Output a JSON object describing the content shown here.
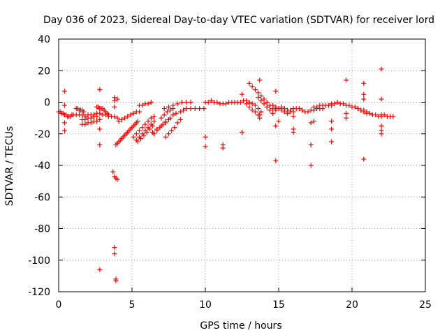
{
  "chart_data": {
    "type": "scatter",
    "title": "Day 036 of 2023, Sidereal Day-to-day VTEC variation (SDTVAR) for receiver lord",
    "xlabel": "GPS time / hours",
    "ylabel": "SDTVAR / TECUs",
    "xlim": [
      0,
      25
    ],
    "ylim": [
      -120,
      40
    ],
    "xticks": [
      0,
      5,
      10,
      15,
      20,
      25
    ],
    "yticks": [
      -120,
      -100,
      -80,
      -60,
      -40,
      -20,
      0,
      20,
      40
    ],
    "marker": "+",
    "color": "#ff0000",
    "grid": true,
    "series": [
      {
        "name": "SDTVAR",
        "points": [
          [
            0.0,
            -6
          ],
          [
            0.1,
            -6
          ],
          [
            0.2,
            -7
          ],
          [
            0.3,
            -7
          ],
          [
            0.4,
            -8
          ],
          [
            0.5,
            -8
          ],
          [
            0.6,
            -9
          ],
          [
            0.7,
            -9
          ],
          [
            0.8,
            -9
          ],
          [
            0.9,
            -8
          ],
          [
            1.0,
            -8
          ],
          [
            1.2,
            -8
          ],
          [
            1.4,
            -8
          ],
          [
            1.6,
            -8
          ],
          [
            1.8,
            -9
          ],
          [
            2.0,
            -8
          ],
          [
            2.2,
            -8
          ],
          [
            2.4,
            -8
          ],
          [
            2.6,
            -7
          ],
          [
            2.8,
            -7
          ],
          [
            1.2,
            -4
          ],
          [
            1.3,
            -4
          ],
          [
            1.4,
            -5
          ],
          [
            1.5,
            -5
          ],
          [
            1.6,
            -5
          ],
          [
            1.7,
            -6
          ],
          [
            1.6,
            -14
          ],
          [
            1.8,
            -14
          ],
          [
            2.0,
            -13
          ],
          [
            2.2,
            -13
          ],
          [
            2.4,
            -12
          ],
          [
            2.6,
            -12
          ],
          [
            2.8,
            -11
          ],
          [
            1.6,
            -11
          ],
          [
            1.8,
            -11
          ],
          [
            2.0,
            -10
          ],
          [
            2.2,
            -10
          ],
          [
            2.4,
            -9
          ],
          [
            2.6,
            -9
          ],
          [
            2.6,
            -3
          ],
          [
            2.7,
            -3
          ],
          [
            2.8,
            -4
          ],
          [
            2.9,
            -4
          ],
          [
            3.0,
            -4
          ],
          [
            3.1,
            -5
          ],
          [
            3.2,
            -6
          ],
          [
            3.3,
            -7
          ],
          [
            3.4,
            -8
          ],
          [
            3.0,
            -8
          ],
          [
            3.2,
            -8
          ],
          [
            3.4,
            -9
          ],
          [
            3.6,
            -9
          ],
          [
            3.8,
            -9
          ],
          [
            4.0,
            -10
          ],
          [
            3.9,
            -27
          ],
          [
            4.0,
            -26
          ],
          [
            4.1,
            -25
          ],
          [
            4.2,
            -24
          ],
          [
            4.3,
            -23
          ],
          [
            4.4,
            -22
          ],
          [
            4.5,
            -21
          ],
          [
            4.6,
            -20
          ],
          [
            4.7,
            -19
          ],
          [
            4.8,
            -18
          ],
          [
            4.9,
            -17
          ],
          [
            5.0,
            -16
          ],
          [
            5.1,
            -15
          ],
          [
            5.2,
            -14
          ],
          [
            5.3,
            -13
          ],
          [
            5.4,
            -12
          ],
          [
            4.1,
            -12
          ],
          [
            4.3,
            -11
          ],
          [
            4.5,
            -10
          ],
          [
            4.7,
            -9
          ],
          [
            4.9,
            -8
          ],
          [
            5.1,
            -7
          ],
          [
            5.3,
            -6
          ],
          [
            5.5,
            -6
          ],
          [
            5.1,
            -22
          ],
          [
            5.3,
            -20
          ],
          [
            5.5,
            -18
          ],
          [
            5.7,
            -16
          ],
          [
            5.9,
            -14
          ],
          [
            6.1,
            -12
          ],
          [
            6.3,
            -10
          ],
          [
            6.5,
            -9
          ],
          [
            5.3,
            -24
          ],
          [
            5.5,
            -22
          ],
          [
            5.7,
            -20
          ],
          [
            5.9,
            -18
          ],
          [
            6.1,
            -16
          ],
          [
            6.3,
            -14
          ],
          [
            6.5,
            -12
          ],
          [
            5.4,
            -25
          ],
          [
            5.6,
            -23
          ],
          [
            5.8,
            -21
          ],
          [
            6.0,
            -19
          ],
          [
            6.2,
            -17
          ],
          [
            6.4,
            -15
          ],
          [
            6.5,
            -20
          ],
          [
            6.7,
            -18
          ],
          [
            6.9,
            -16
          ],
          [
            7.1,
            -14
          ],
          [
            7.3,
            -12
          ],
          [
            7.5,
            -11
          ],
          [
            6.4,
            -19
          ],
          [
            6.7,
            -17
          ],
          [
            7.0,
            -15
          ],
          [
            7.3,
            -13
          ],
          [
            7.6,
            -10
          ],
          [
            7.8,
            -8
          ],
          [
            8.0,
            -7
          ],
          [
            7.0,
            -10
          ],
          [
            7.2,
            -8
          ],
          [
            7.4,
            -6
          ],
          [
            7.6,
            -5
          ],
          [
            7.8,
            -4
          ],
          [
            7.3,
            -22
          ],
          [
            7.5,
            -20
          ],
          [
            7.7,
            -18
          ],
          [
            7.9,
            -16
          ],
          [
            8.1,
            -13
          ],
          [
            8.3,
            -11
          ],
          [
            5.5,
            -2
          ],
          [
            5.7,
            -2
          ],
          [
            5.9,
            -1
          ],
          [
            6.1,
            -1
          ],
          [
            6.3,
            0
          ],
          [
            7.2,
            -4
          ],
          [
            7.5,
            -3
          ],
          [
            7.8,
            -2
          ],
          [
            8.1,
            -1
          ],
          [
            8.4,
            0
          ],
          [
            8.7,
            0
          ],
          [
            9.0,
            0
          ],
          [
            8.3,
            -6
          ],
          [
            8.5,
            -5
          ],
          [
            8.7,
            -4
          ],
          [
            9.0,
            -4
          ],
          [
            9.3,
            -4
          ],
          [
            9.6,
            -4
          ],
          [
            9.9,
            -4
          ],
          [
            10.0,
            0
          ],
          [
            10.2,
            0
          ],
          [
            10.4,
            1
          ],
          [
            10.6,
            0
          ],
          [
            10.8,
            0
          ],
          [
            11.0,
            -1
          ],
          [
            11.2,
            -1
          ],
          [
            11.4,
            -1
          ],
          [
            11.6,
            0
          ],
          [
            11.8,
            0
          ],
          [
            12.0,
            0
          ],
          [
            12.2,
            0
          ],
          [
            12.4,
            0
          ],
          [
            12.6,
            1
          ],
          [
            12.8,
            1
          ],
          [
            13.0,
            0
          ],
          [
            13.2,
            -1
          ],
          [
            13.4,
            -2
          ],
          [
            13.6,
            -4
          ],
          [
            13.8,
            -6
          ],
          [
            12.8,
            -1
          ],
          [
            13.0,
            -3
          ],
          [
            13.2,
            -5
          ],
          [
            13.4,
            -6
          ],
          [
            13.6,
            -8
          ],
          [
            13.0,
            12
          ],
          [
            13.2,
            10
          ],
          [
            13.4,
            8
          ],
          [
            13.6,
            6
          ],
          [
            13.8,
            4
          ],
          [
            14.0,
            2
          ],
          [
            14.2,
            0
          ],
          [
            14.4,
            -2
          ],
          [
            14.6,
            -4
          ],
          [
            14.8,
            -5
          ],
          [
            13.6,
            3
          ],
          [
            13.8,
            1
          ],
          [
            14.0,
            -1
          ],
          [
            14.2,
            -3
          ],
          [
            14.4,
            -5
          ],
          [
            14.6,
            -7
          ],
          [
            14.6,
            -2
          ],
          [
            14.8,
            -3
          ],
          [
            15.0,
            -4
          ],
          [
            15.2,
            -5
          ],
          [
            15.4,
            -6
          ],
          [
            15.6,
            -7
          ],
          [
            15.8,
            -6
          ],
          [
            16.0,
            -6
          ],
          [
            15.2,
            -3
          ],
          [
            15.4,
            -4
          ],
          [
            15.6,
            -5
          ],
          [
            15.8,
            -5
          ],
          [
            16.0,
            -4
          ],
          [
            16.2,
            -4
          ],
          [
            16.4,
            -4
          ],
          [
            16.6,
            -5
          ],
          [
            16.8,
            -6
          ],
          [
            17.0,
            -6
          ],
          [
            17.2,
            -5
          ],
          [
            17.4,
            -5
          ],
          [
            17.6,
            -4
          ],
          [
            17.8,
            -4
          ],
          [
            18.0,
            -4
          ],
          [
            17.4,
            -3
          ],
          [
            17.6,
            -3
          ],
          [
            17.8,
            -2
          ],
          [
            18.0,
            -2
          ],
          [
            18.2,
            -2
          ],
          [
            18.4,
            -2
          ],
          [
            18.6,
            -2
          ],
          [
            18.6,
            -1
          ],
          [
            18.8,
            -1
          ],
          [
            19.0,
            0
          ],
          [
            19.2,
            -1
          ],
          [
            19.4,
            -1
          ],
          [
            19.6,
            -2
          ],
          [
            19.8,
            -2
          ],
          [
            20.0,
            -3
          ],
          [
            20.2,
            -3
          ],
          [
            20.4,
            -4
          ],
          [
            20.6,
            -5
          ],
          [
            20.8,
            -6
          ],
          [
            21.0,
            -7
          ],
          [
            20.8,
            -5
          ],
          [
            21.0,
            -6
          ],
          [
            21.2,
            -7
          ],
          [
            21.4,
            -8
          ],
          [
            21.6,
            -8
          ],
          [
            21.8,
            -9
          ],
          [
            22.0,
            -9
          ],
          [
            22.0,
            -8
          ],
          [
            22.2,
            -8
          ],
          [
            22.4,
            -9
          ],
          [
            22.6,
            -9
          ],
          [
            22.8,
            -9
          ],
          [
            0.4,
            7
          ],
          [
            0.4,
            -2
          ],
          [
            0.4,
            -13
          ],
          [
            0.4,
            -18
          ],
          [
            2.8,
            8
          ],
          [
            2.8,
            -17
          ],
          [
            2.8,
            -27
          ],
          [
            2.8,
            -106
          ],
          [
            3.7,
            -44
          ],
          [
            3.8,
            -47
          ],
          [
            3.9,
            -48
          ],
          [
            4.0,
            -49
          ],
          [
            3.8,
            -92
          ],
          [
            3.8,
            -96
          ],
          [
            3.9,
            -112
          ],
          [
            3.9,
            -113
          ],
          [
            3.8,
            3
          ],
          [
            3.8,
            1
          ],
          [
            4.0,
            2
          ],
          [
            3.8,
            -3
          ],
          [
            10.0,
            -22
          ],
          [
            10.0,
            -28
          ],
          [
            11.2,
            -27
          ],
          [
            11.2,
            -29
          ],
          [
            12.5,
            -19
          ],
          [
            12.5,
            5
          ],
          [
            13.7,
            14
          ],
          [
            13.7,
            -8
          ],
          [
            13.7,
            -10
          ],
          [
            14.8,
            7
          ],
          [
            14.8,
            -15
          ],
          [
            14.8,
            -37
          ],
          [
            15.0,
            -12
          ],
          [
            16.0,
            -9
          ],
          [
            16.0,
            -17
          ],
          [
            16.0,
            -19
          ],
          [
            17.2,
            -13
          ],
          [
            17.2,
            -27
          ],
          [
            17.2,
            -40
          ],
          [
            17.4,
            -12
          ],
          [
            18.6,
            -12
          ],
          [
            18.6,
            -17
          ],
          [
            18.6,
            -25
          ],
          [
            19.6,
            14
          ],
          [
            19.6,
            -7
          ],
          [
            19.6,
            -10
          ],
          [
            20.8,
            12
          ],
          [
            20.8,
            5
          ],
          [
            20.8,
            2
          ],
          [
            20.8,
            -36
          ],
          [
            22.0,
            21
          ],
          [
            22.0,
            2
          ],
          [
            22.0,
            -15
          ],
          [
            22.0,
            -18
          ],
          [
            22.0,
            -20
          ]
        ]
      }
    ]
  }
}
